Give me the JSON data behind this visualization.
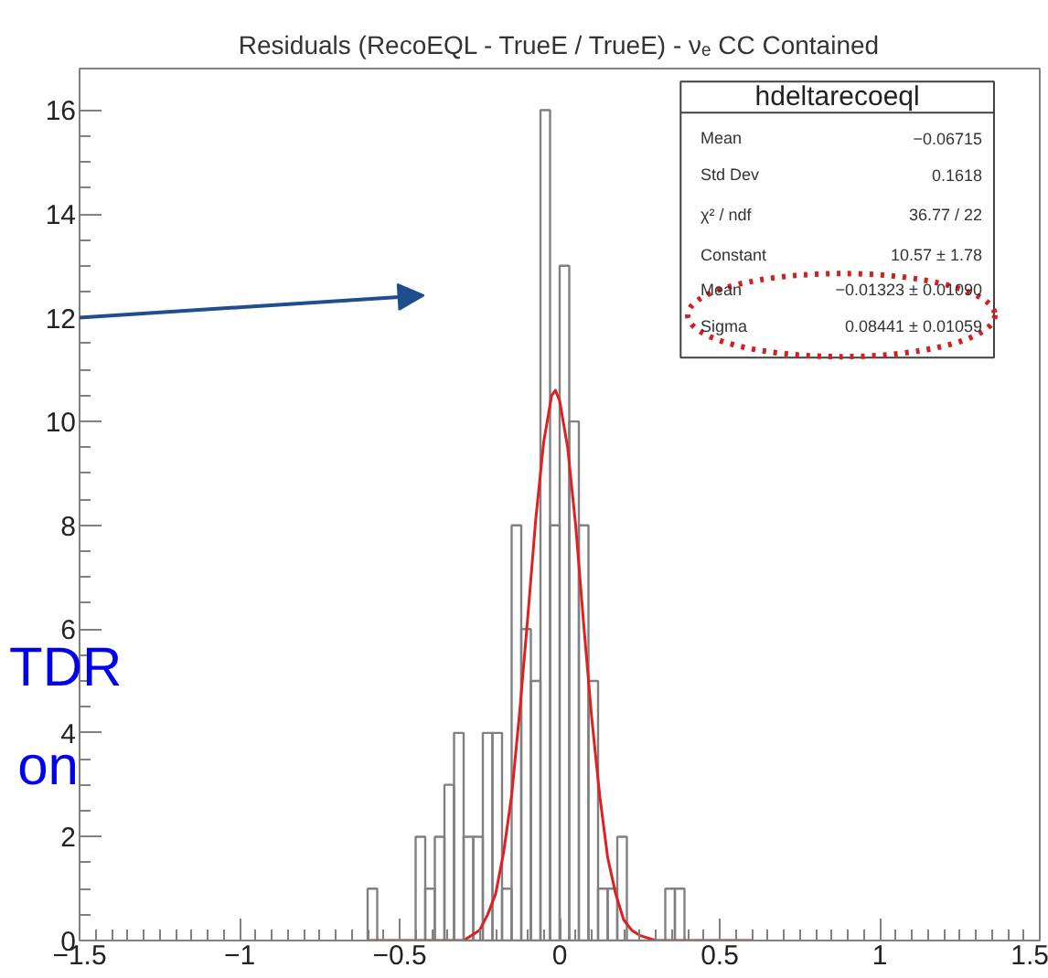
{
  "chart_data": {
    "type": "histogram",
    "title": "Residuals (RecoEQL - TrueE / TrueE) - νₑ CC Contained",
    "bins": [
      -0.6,
      -0.57,
      -0.54,
      -0.51,
      -0.48,
      -0.45,
      -0.42,
      -0.39,
      -0.36,
      -0.33,
      -0.3,
      -0.27,
      -0.24,
      -0.21,
      -0.18,
      -0.15,
      -0.12,
      -0.09,
      -0.06,
      -0.03,
      0,
      0.03,
      0.06,
      0.09,
      0.12,
      0.15,
      0.18,
      0.21,
      0.24,
      0.27,
      0.3,
      0.33,
      0.36,
      0.39,
      0.42,
      0.45,
      0.48,
      0.51,
      0.54,
      0.57,
      0.6
    ],
    "values": [
      1,
      0,
      0,
      0,
      0,
      2,
      1,
      2,
      3,
      4,
      2,
      2,
      4,
      4,
      1,
      8,
      6,
      5,
      16,
      8,
      13,
      10,
      8,
      5,
      1,
      1,
      2,
      0,
      0,
      0,
      0,
      1,
      1,
      0,
      0,
      0,
      0,
      0,
      0,
      0
    ],
    "color": "#808080",
    "series": [
      {
        "type": "line",
        "color": "#e02020",
        "x": [
          -0.6,
          -0.4,
          -0.3,
          -0.25,
          -0.225,
          -0.2,
          -0.175,
          -0.15,
          -0.125,
          -0.1,
          -0.075,
          -0.05,
          -0.025,
          -0.0132,
          0,
          0.025,
          0.05,
          0.075,
          0.1,
          0.125,
          0.15,
          0.175,
          0.2,
          0.225,
          0.25,
          0.3,
          0.4,
          0.6
        ],
        "values": [
          0,
          0,
          0.0,
          0.2,
          0.5,
          0.9,
          1.7,
          2.8,
          4.4,
          6.2,
          8.1,
          9.6,
          10.5,
          10.6,
          10.4,
          9.5,
          8.0,
          6.1,
          4.3,
          2.8,
          1.6,
          0.9,
          0.4,
          0.2,
          0.1,
          0.0,
          0,
          0
        ]
      }
    ],
    "xlim": [
      -1.5,
      1.5
    ],
    "ylim": [
      0,
      16.8
    ],
    "xticks": [
      {
        "value": -1.5,
        "label": "−1.5"
      },
      {
        "value": -1,
        "label": "−1"
      },
      {
        "value": -0.5,
        "label": "−0.5"
      },
      0,
      0.5,
      1,
      1.5
    ],
    "yticks": [
      0,
      2,
      4,
      6,
      8,
      10,
      12,
      14,
      16
    ],
    "grid": false,
    "annotations": [
      "hdeltarecoeql",
      "Mean",
      "−0.06715",
      "Std Dev",
      "0.1618",
      "χ² / ndf",
      "36.77 / 22",
      "Constant",
      "10.57 ± 1.78",
      "Mean",
      "−0.01323 ± 0.01090",
      "Sigma",
      "0.08441 ± 0.01059",
      "TDR",
      "on"
    ]
  }
}
